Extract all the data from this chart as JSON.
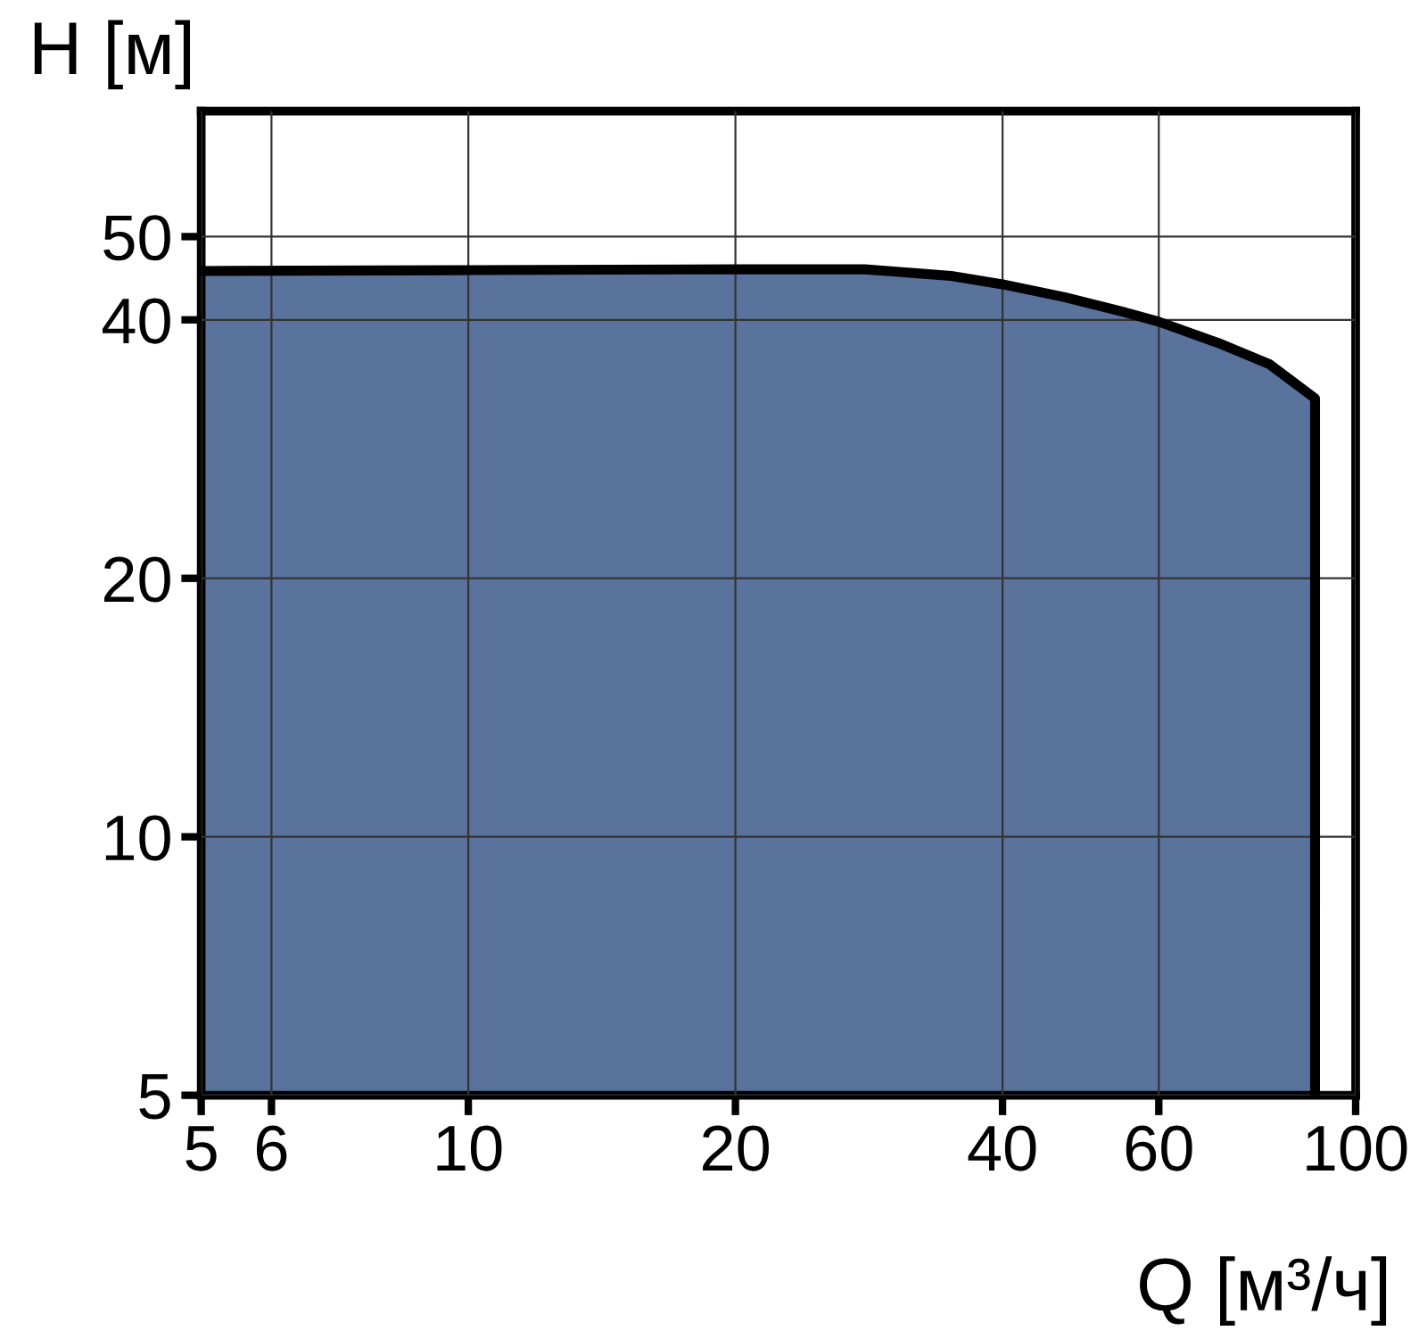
{
  "chart_data": {
    "type": "area",
    "xlabel": "Q [м³/ч]",
    "ylabel": "H [м]",
    "log": "xy",
    "grid": true,
    "xlim": [
      5,
      100
    ],
    "xticks": [
      5,
      6,
      10,
      20,
      40,
      60,
      100
    ],
    "ylim": [
      5,
      70
    ],
    "yticks": [
      5,
      10,
      20,
      40,
      50
    ],
    "x": [
      5,
      10,
      20,
      28,
      35,
      40,
      47,
      55,
      60,
      70,
      80,
      90
    ],
    "series": [
      {
        "color": "#3d5a8c",
        "values": [
          45.6,
          45.7,
          45.8,
          45.8,
          45,
          44,
          42.5,
          40.8,
          39.8,
          37.6,
          35.5,
          32.4
        ]
      }
    ]
  }
}
